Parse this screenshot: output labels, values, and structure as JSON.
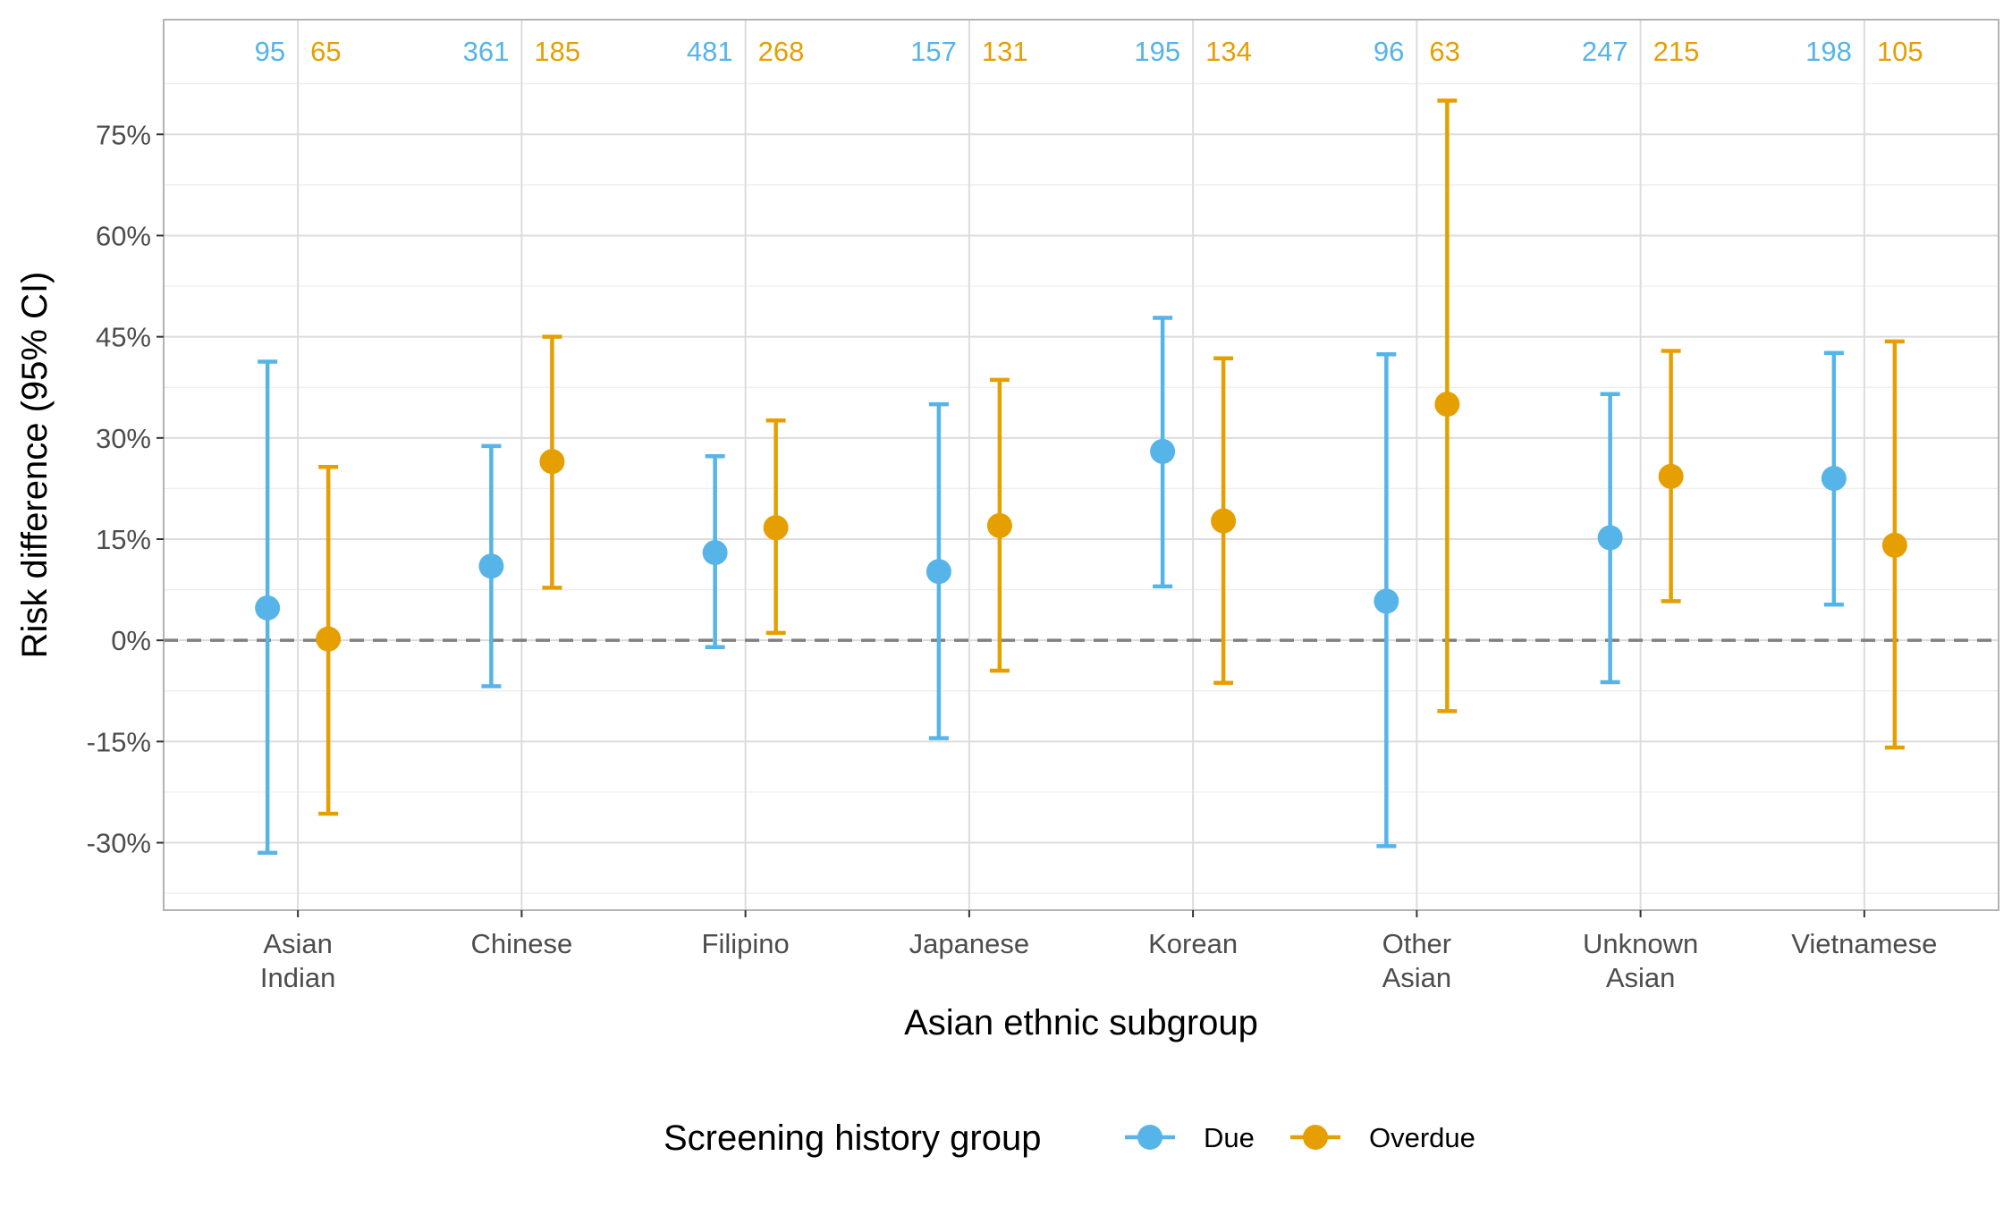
{
  "chart_data": {
    "type": "scatter",
    "subtype": "point-range (estimate with 95% CI error bars)",
    "xlabel": "Asian ethnic subgroup",
    "ylabel": "Risk difference (95% CI)",
    "categories": [
      "Asian\nIndian",
      "Chinese",
      "Filipino",
      "Japanese",
      "Korean",
      "Other\nAsian",
      "Unknown\nAsian",
      "Vietnamese"
    ],
    "y_ticks": [
      -30,
      -15,
      0,
      15,
      30,
      45,
      60,
      75
    ],
    "y_tick_labels": [
      "-30%",
      "-15%",
      "0%",
      "15%",
      "30%",
      "45%",
      "60%",
      "75%"
    ],
    "ylim": [
      -40,
      92
    ],
    "reference_line": {
      "y": 0,
      "style": "dashed",
      "color": "#808080"
    },
    "grid": true,
    "legend": {
      "title": "Screening history group",
      "position": "bottom"
    },
    "series": [
      {
        "name": "Due",
        "color": "#56B4E9",
        "estimate": [
          4.8,
          11.0,
          13.0,
          10.2,
          28.0,
          5.8,
          15.2,
          24.0
        ],
        "lower": [
          -31.5,
          -6.8,
          -1.0,
          -14.5,
          8.0,
          -30.5,
          -6.2,
          5.3
        ],
        "upper": [
          41.3,
          28.8,
          27.3,
          35.0,
          47.8,
          42.4,
          36.5,
          42.6
        ],
        "n_labels": [
          "95",
          "361",
          "481",
          "157",
          "195",
          "96",
          "247",
          "198"
        ]
      },
      {
        "name": "Overdue",
        "color": "#E69F00",
        "estimate": [
          0.2,
          26.5,
          16.7,
          17.0,
          17.7,
          35.0,
          24.3,
          14.1
        ],
        "lower": [
          -25.7,
          7.8,
          1.1,
          -4.5,
          -6.3,
          -10.5,
          5.8,
          -15.9
        ],
        "upper": [
          25.7,
          45.0,
          32.6,
          38.6,
          41.8,
          80.0,
          42.9,
          44.3
        ],
        "n_labels": [
          "65",
          "185",
          "268",
          "131",
          "134",
          "63",
          "215",
          "105"
        ]
      }
    ]
  }
}
